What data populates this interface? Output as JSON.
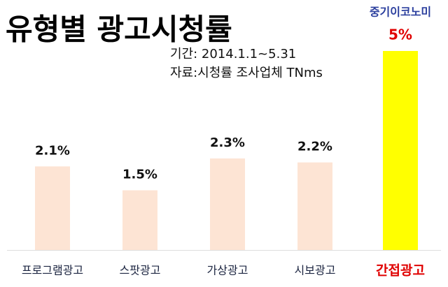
{
  "chart_data": {
    "type": "bar",
    "title": "유형별 광고시청률",
    "subtitle": [
      "기간: 2014.1.1~5.31",
      "자료:시청률 조사업체 TNms"
    ],
    "source": "중기이코노미",
    "categories": [
      "프로그램광고",
      "스팟광고",
      "가상광고",
      "시보광고",
      "간접광고"
    ],
    "values": [
      2.1,
      1.5,
      2.3,
      2.2,
      5
    ],
    "value_labels": [
      "2.1%",
      "1.5%",
      "2.3%",
      "2.2%",
      "5%"
    ],
    "colors": [
      "#fde4d4",
      "#fde4d4",
      "#fde4d4",
      "#fde4d4",
      "#ffff00"
    ],
    "label_colors": [
      "#1b2440",
      "#1b2440",
      "#1b2440",
      "#1b2440",
      "#e00000"
    ],
    "ylim": [
      0,
      5
    ]
  }
}
